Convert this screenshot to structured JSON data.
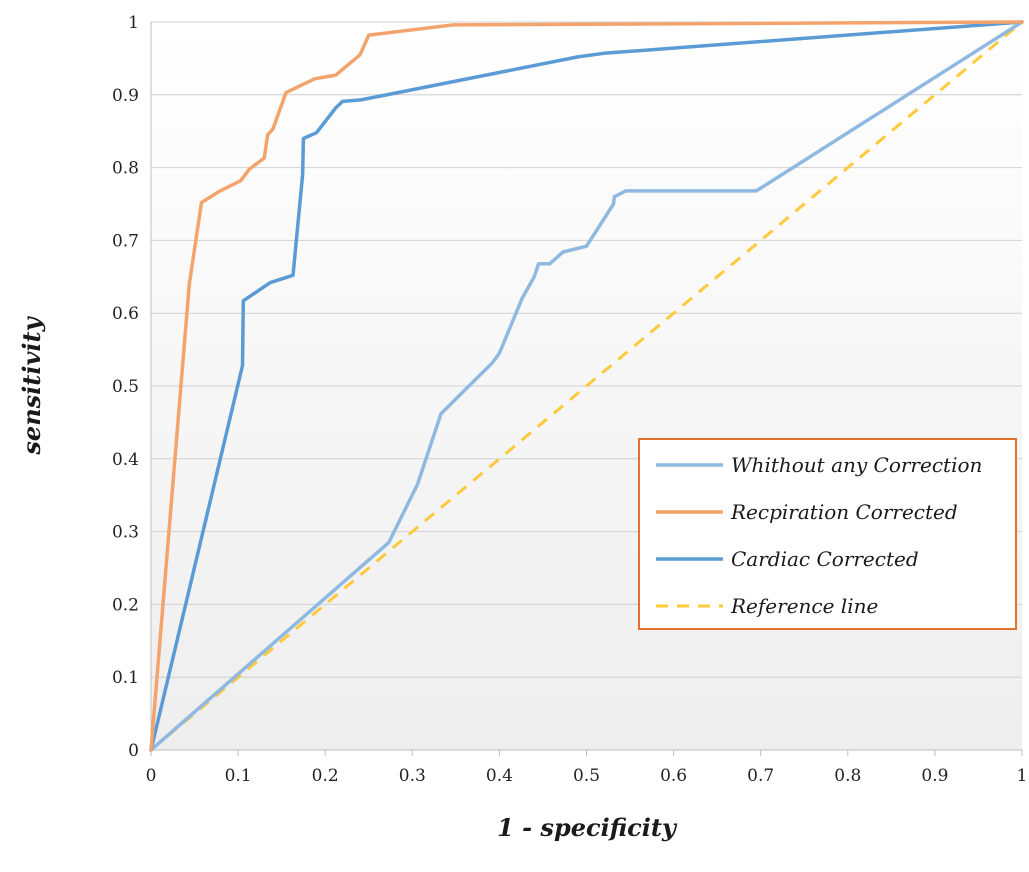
{
  "chart_data": {
    "type": "line",
    "xlabel": "1 - specificity",
    "ylabel": "sensitivity",
    "xlim": [
      0,
      1
    ],
    "ylim": [
      0,
      1
    ],
    "x_ticks": [
      "0",
      "0.1",
      "0.2",
      "0.3",
      "0.4",
      "0.5",
      "0.6",
      "0.7",
      "0.8",
      "0.9",
      "1"
    ],
    "y_ticks": [
      "0",
      "0.1",
      "0.2",
      "0.3",
      "0.4",
      "0.5",
      "0.6",
      "0.7",
      "0.8",
      "0.9",
      "1"
    ],
    "grid": "horizontal",
    "legend_position": "right",
    "series": [
      {
        "name": "Whithout any Correction",
        "color": "#8fb9e0",
        "dash": "solid",
        "points": [
          [
            0,
            0
          ],
          [
            0.273,
            0.285
          ],
          [
            0.306,
            0.365
          ],
          [
            0.333,
            0.462
          ],
          [
            0.392,
            0.532
          ],
          [
            0.4,
            0.545
          ],
          [
            0.426,
            0.62
          ],
          [
            0.44,
            0.65
          ],
          [
            0.445,
            0.668
          ],
          [
            0.458,
            0.668
          ],
          [
            0.473,
            0.684
          ],
          [
            0.5,
            0.692
          ],
          [
            0.531,
            0.75
          ],
          [
            0.532,
            0.76
          ],
          [
            0.545,
            0.768
          ],
          [
            0.695,
            0.768
          ],
          [
            1,
            1
          ]
        ]
      },
      {
        "name": "Recpiration Corrected",
        "color": "#f3a46c",
        "dash": "solid",
        "points": [
          [
            0,
            0
          ],
          [
            0.044,
            0.64
          ],
          [
            0.058,
            0.752
          ],
          [
            0.078,
            0.767
          ],
          [
            0.103,
            0.782
          ],
          [
            0.113,
            0.798
          ],
          [
            0.13,
            0.813
          ],
          [
            0.134,
            0.845
          ],
          [
            0.14,
            0.853
          ],
          [
            0.155,
            0.903
          ],
          [
            0.188,
            0.922
          ],
          [
            0.212,
            0.927
          ],
          [
            0.24,
            0.955
          ],
          [
            0.25,
            0.982
          ],
          [
            0.347,
            0.996
          ],
          [
            1,
            1
          ]
        ]
      },
      {
        "name": "Cardiac Corrected",
        "color": "#5b9bd5",
        "dash": "solid",
        "points": [
          [
            0,
            0
          ],
          [
            0.105,
            0.528
          ],
          [
            0.106,
            0.617
          ],
          [
            0.137,
            0.642
          ],
          [
            0.163,
            0.652
          ],
          [
            0.174,
            0.79
          ],
          [
            0.175,
            0.84
          ],
          [
            0.19,
            0.848
          ],
          [
            0.212,
            0.882
          ],
          [
            0.22,
            0.891
          ],
          [
            0.241,
            0.893
          ],
          [
            0.49,
            0.952
          ],
          [
            0.52,
            0.957
          ],
          [
            1,
            1
          ]
        ]
      },
      {
        "name": "Reference line",
        "color": "#ffc93c",
        "dash": "dashed",
        "points": [
          [
            0,
            0
          ],
          [
            1,
            1
          ]
        ]
      }
    ]
  }
}
